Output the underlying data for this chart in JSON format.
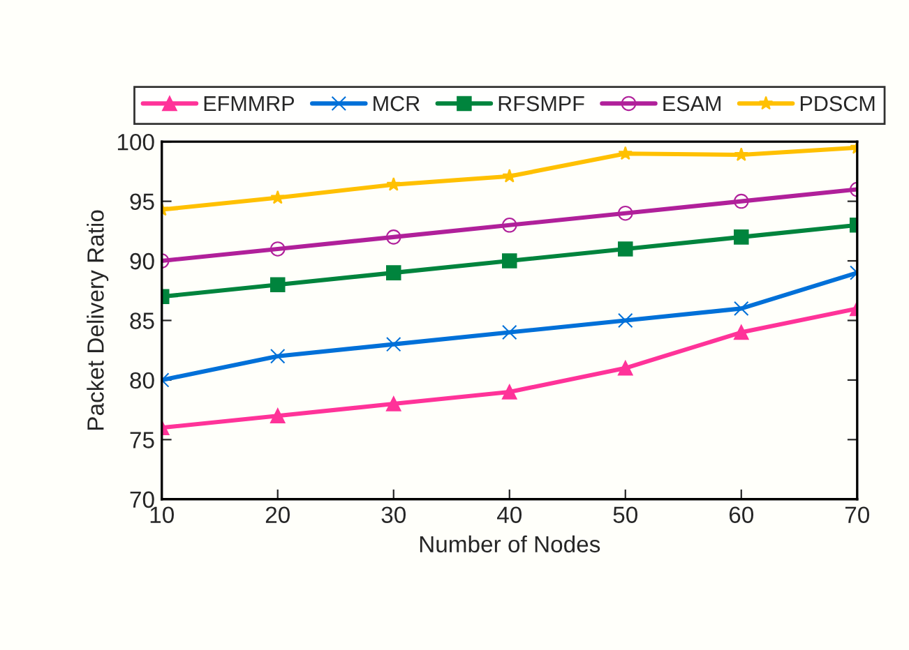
{
  "chart_data": {
    "type": "line",
    "xlabel": "Number of Nodes",
    "ylabel": "Packet Delivery Ratio",
    "x": [
      10,
      20,
      30,
      40,
      50,
      60,
      70
    ],
    "series": [
      {
        "name": "EFMMRP",
        "color": "#ff3399",
        "marker": "triangle",
        "values": [
          76,
          77,
          78,
          79,
          81,
          84,
          86
        ]
      },
      {
        "name": "MCR",
        "color": "#0070d8",
        "marker": "cross",
        "values": [
          80,
          82,
          83,
          84,
          85,
          86,
          89
        ]
      },
      {
        "name": "RFSMPF",
        "color": "#00843d",
        "marker": "square",
        "values": [
          87,
          88,
          89,
          90,
          91,
          92,
          93
        ]
      },
      {
        "name": "ESAM",
        "color": "#b0209a",
        "marker": "circle",
        "values": [
          90,
          91,
          92,
          93,
          94,
          95,
          96
        ]
      },
      {
        "name": "PDSCM",
        "color": "#ffc000",
        "marker": "star",
        "values": [
          94.3,
          95.3,
          96.4,
          97.1,
          99.0,
          98.9,
          99.5
        ]
      }
    ],
    "xlim": [
      10,
      70
    ],
    "xticks": [
      10,
      20,
      30,
      40,
      50,
      60,
      70
    ],
    "ylim": [
      70,
      100
    ],
    "yticks": [
      70,
      75,
      80,
      85,
      90,
      95,
      100
    ],
    "grid": false,
    "legend": "top"
  }
}
